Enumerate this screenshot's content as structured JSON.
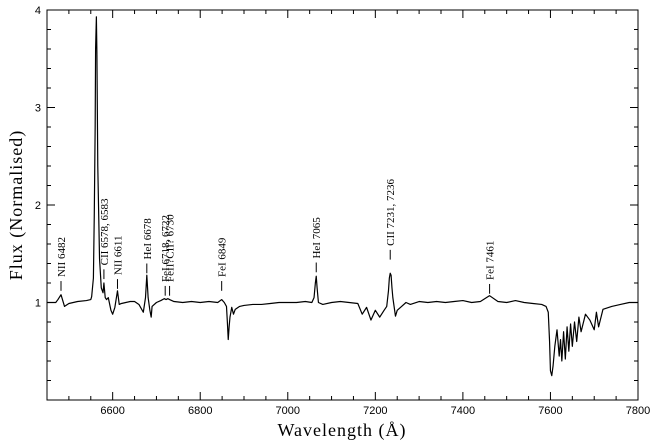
{
  "chart_data": {
    "type": "line",
    "title": "",
    "xlabel": "Wavelength (Å)",
    "ylabel": "Flux (Normalised)",
    "xlim": [
      6450,
      7800
    ],
    "ylim": [
      0,
      4
    ],
    "x_ticks": [
      6600,
      6800,
      7000,
      7200,
      7400,
      7600,
      7800
    ],
    "y_ticks": [
      1,
      2,
      3,
      4
    ],
    "grid": false,
    "line_color": "#000000",
    "series": [
      {
        "x": [
          6450,
          6470,
          6475,
          6482,
          6490,
          6500,
          6520,
          6540,
          6550,
          6552,
          6556,
          6558,
          6560,
          6561,
          6562.8,
          6564,
          6566,
          6570,
          6574,
          6578,
          6580,
          6583,
          6586,
          6590,
          6596,
          6600,
          6605,
          6611,
          6615,
          6620,
          6630,
          6640,
          6650,
          6660,
          6670,
          6675,
          6678,
          6681,
          6685,
          6688,
          6690,
          6700,
          6710,
          6718,
          6722,
          6726,
          6730,
          6740,
          6760,
          6780,
          6800,
          6820,
          6840,
          6849,
          6855,
          6860,
          6862,
          6864,
          6866,
          6868,
          6872,
          6876,
          6880,
          6890,
          6900,
          6920,
          6940,
          6960,
          6980,
          7000,
          7020,
          7040,
          7055,
          7060,
          7063,
          7065,
          7067,
          7070,
          7080,
          7100,
          7120,
          7140,
          7160,
          7170,
          7180,
          7190,
          7200,
          7210,
          7220,
          7226,
          7230,
          7232,
          7234,
          7236,
          7238,
          7240,
          7246,
          7250,
          7260,
          7270,
          7280,
          7300,
          7320,
          7340,
          7360,
          7380,
          7400,
          7420,
          7440,
          7461,
          7480,
          7500,
          7520,
          7540,
          7560,
          7580,
          7590,
          7595,
          7598,
          7600,
          7603,
          7606,
          7610,
          7615,
          7620,
          7623,
          7626,
          7630,
          7634,
          7638,
          7642,
          7646,
          7650,
          7655,
          7660,
          7665,
          7670,
          7680,
          7690,
          7700,
          7705,
          7710,
          7720,
          7740,
          7760,
          7780,
          7800
        ],
        "y": [
          1.0,
          1.0,
          1.03,
          1.08,
          0.96,
          0.99,
          1.01,
          1.02,
          1.03,
          1.06,
          1.25,
          1.9,
          2.8,
          3.6,
          3.93,
          3.55,
          2.4,
          1.45,
          1.15,
          1.1,
          1.2,
          1.05,
          1.03,
          1.05,
          0.92,
          0.88,
          0.95,
          1.12,
          0.98,
          0.99,
          1.0,
          1.01,
          1.01,
          0.98,
          0.9,
          1.05,
          1.28,
          1.05,
          0.92,
          0.85,
          0.96,
          1.0,
          1.02,
          1.04,
          1.03,
          1.04,
          1.03,
          1.01,
          1.0,
          1.01,
          1.0,
          1.01,
          1.0,
          1.03,
          1.0,
          0.96,
          0.8,
          0.62,
          0.75,
          0.85,
          0.95,
          0.88,
          0.93,
          0.96,
          0.97,
          0.98,
          0.98,
          0.99,
          1.0,
          1.0,
          1.0,
          1.01,
          1.0,
          1.05,
          1.2,
          1.27,
          1.15,
          1.0,
          0.98,
          1.0,
          1.01,
          1.0,
          0.99,
          0.88,
          0.95,
          0.82,
          0.92,
          0.85,
          0.92,
          0.96,
          1.12,
          1.25,
          1.3,
          1.28,
          1.15,
          1.05,
          0.86,
          0.92,
          0.96,
          1.0,
          0.98,
          1.01,
          1.0,
          1.01,
          1.0,
          1.01,
          1.02,
          1.0,
          1.01,
          1.07,
          1.01,
          1.0,
          1.02,
          1.0,
          0.99,
          0.98,
          0.96,
          0.9,
          0.6,
          0.3,
          0.25,
          0.35,
          0.55,
          0.72,
          0.45,
          0.62,
          0.4,
          0.7,
          0.42,
          0.75,
          0.5,
          0.78,
          0.55,
          0.8,
          0.6,
          0.85,
          0.7,
          0.88,
          0.82,
          0.72,
          0.9,
          0.75,
          0.93,
          0.96,
          0.98,
          1.0,
          1.0
        ]
      }
    ],
    "annotations": [
      {
        "text": "NII 6482",
        "x": 6482,
        "tick_bottom": 1.12,
        "tick_top": 1.22
      },
      {
        "text": "CII 6578, 6583",
        "x": 6580,
        "tick_bottom": 1.24,
        "tick_top": 1.34
      },
      {
        "text": "NII 6611",
        "x": 6611,
        "tick_bottom": 1.14,
        "tick_top": 1.24
      },
      {
        "text": "HeI 6678",
        "x": 6678,
        "tick_bottom": 1.3,
        "tick_top": 1.4
      },
      {
        "text": "FeI 6718, 6722",
        "x": 6720,
        "tick_bottom": 1.07,
        "tick_top": 1.17
      },
      {
        "text": "FeII?CII? 6730",
        "x": 6730,
        "tick_bottom": 1.07,
        "tick_top": 1.17
      },
      {
        "text": "FeI 6849",
        "x": 6849,
        "tick_bottom": 1.12,
        "tick_top": 1.22
      },
      {
        "text": "HeI 7065",
        "x": 7065,
        "tick_bottom": 1.31,
        "tick_top": 1.41
      },
      {
        "text": "CII 7231, 7236",
        "x": 7234,
        "tick_bottom": 1.44,
        "tick_top": 1.54
      },
      {
        "text": "FeI 7461",
        "x": 7461,
        "tick_bottom": 1.09,
        "tick_top": 1.19
      }
    ]
  }
}
